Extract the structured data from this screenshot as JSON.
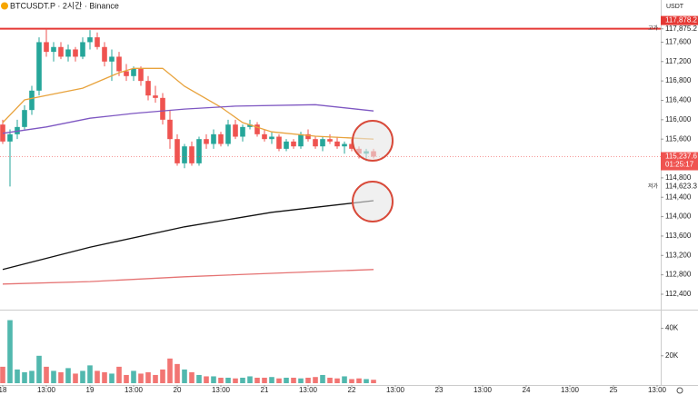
{
  "chart_data": {
    "type": "candlestick",
    "title": "BTCUSDT.P · 2시간 · Binance",
    "y_axis_label": "USDT",
    "x": [
      0,
      2,
      4,
      6,
      8,
      10,
      12,
      14,
      16,
      18,
      20,
      22,
      24,
      26,
      28,
      30,
      32,
      34,
      36,
      38,
      40,
      42,
      44,
      46,
      48,
      50,
      52,
      54,
      56,
      58,
      60,
      62,
      64,
      66,
      68,
      70,
      72,
      74,
      76,
      78,
      80,
      82,
      84,
      86,
      88,
      90,
      92,
      94,
      96,
      98,
      100,
      102
    ],
    "open": [
      115900,
      115550,
      115700,
      115850,
      116200,
      116600,
      117600,
      117400,
      117500,
      117300,
      117450,
      117300,
      117600,
      117700,
      117500,
      117200,
      117300,
      117000,
      116900,
      117050,
      116800,
      116500,
      116450,
      116000,
      115600,
      115100,
      115450,
      115100,
      115600,
      115500,
      115700,
      115500,
      115900,
      115650,
      115850,
      115900,
      115700,
      115600,
      115650,
      115400,
      115550,
      115450,
      115700,
      115600,
      115450,
      115600,
      115550,
      115450,
      115500,
      115400,
      115300,
      115350
    ],
    "high": [
      116000,
      115800,
      116000,
      116300,
      116700,
      117700,
      117878.2,
      117600,
      117600,
      117550,
      117500,
      117700,
      117850,
      117800,
      117600,
      117450,
      117400,
      117150,
      117100,
      117100,
      116900,
      116700,
      116550,
      116200,
      115700,
      115500,
      115550,
      115650,
      115700,
      115800,
      115750,
      116000,
      116000,
      115900,
      116000,
      115950,
      115800,
      115750,
      115700,
      115600,
      115600,
      115750,
      115800,
      115650,
      115650,
      115700,
      115650,
      115550,
      115600,
      115450,
      115400,
      115400
    ],
    "low": [
      115500,
      114623.3,
      115600,
      115800,
      116100,
      116500,
      117300,
      117200,
      117250,
      117200,
      117200,
      117250,
      117450,
      117450,
      117100,
      116800,
      116900,
      116800,
      116800,
      116700,
      116400,
      116350,
      115900,
      115400,
      115050,
      115000,
      115050,
      115050,
      115400,
      115400,
      115450,
      115450,
      115600,
      115550,
      115800,
      115650,
      115550,
      115500,
      115350,
      115350,
      115400,
      115400,
      115550,
      115400,
      115350,
      115500,
      115400,
      115300,
      115350,
      115200,
      115150,
      115200
    ],
    "close": [
      115550,
      115700,
      115850,
      116200,
      116600,
      117600,
      117400,
      117500,
      117300,
      117450,
      117300,
      117600,
      117700,
      117500,
      117200,
      117300,
      117000,
      116900,
      117050,
      116800,
      116500,
      116450,
      116000,
      115600,
      115100,
      115450,
      115100,
      115600,
      115500,
      115700,
      115500,
      115900,
      115650,
      115850,
      115900,
      115700,
      115600,
      115650,
      115400,
      115550,
      115450,
      115700,
      115600,
      115450,
      115600,
      115550,
      115450,
      115500,
      115400,
      115300,
      115350,
      115237.6
    ],
    "volume": [
      12000,
      46000,
      10000,
      8000,
      9000,
      20000,
      12000,
      9000,
      8000,
      11000,
      7000,
      9000,
      13000,
      9000,
      8000,
      7000,
      12000,
      6000,
      9000,
      7000,
      8000,
      6000,
      10000,
      18000,
      14000,
      10000,
      8000,
      6000,
      5000,
      5000,
      4000,
      4000,
      3500,
      4000,
      5000,
      4000,
      4000,
      4500,
      3500,
      4000,
      4000,
      3500,
      4000,
      4500,
      6000,
      4000,
      3500,
      5000,
      3000,
      3500,
      3000,
      2500
    ],
    "up_color": "#26a69a",
    "down_color": "#ef5350",
    "lines": [
      {
        "color": "#e8a33d",
        "x": [
          0,
          6,
          12,
          22,
          32,
          36,
          44,
          50,
          60,
          66,
          74,
          86,
          102
        ],
        "values": [
          115940,
          116410,
          116500,
          116650,
          116970,
          117060,
          117060,
          116690,
          116260,
          115940,
          115750,
          115660,
          115600
        ]
      },
      {
        "color": "#7e57c2",
        "x": [
          0,
          12,
          24,
          36,
          50,
          64,
          86,
          102
        ],
        "values": [
          115720,
          115850,
          116030,
          116130,
          116220,
          116280,
          116310,
          116180
        ]
      },
      {
        "color": "#111111",
        "x": [
          0,
          24,
          50,
          74,
          102
        ],
        "values": [
          112910,
          113370,
          113790,
          114090,
          114330
        ]
      },
      {
        "color": "#e57373",
        "x": [
          0,
          24,
          50,
          74,
          102
        ],
        "values": [
          112610,
          112660,
          112760,
          112830,
          112910
        ]
      }
    ],
    "high_line": {
      "value": 117878.2,
      "label": "117,878.2",
      "color": "#e53935",
      "marker": "고가"
    },
    "low_marker": {
      "value": 114623.3,
      "label": "114,623.3",
      "marker": "저가"
    },
    "last_price": {
      "value": 115237.6,
      "label": "115,237.6",
      "countdown": "01:25:17"
    },
    "xlim": [
      -0.75,
      181
    ],
    "xticks": [
      {
        "value": 0,
        "label": "18"
      },
      {
        "value": 12,
        "label": "13:00"
      },
      {
        "value": 24,
        "label": "19"
      },
      {
        "value": 36,
        "label": "13:00"
      },
      {
        "value": 48,
        "label": "20"
      },
      {
        "value": 60,
        "label": "13:00"
      },
      {
        "value": 72,
        "label": "21"
      },
      {
        "value": 84,
        "label": "13:00"
      },
      {
        "value": 96,
        "label": "22"
      },
      {
        "value": 108,
        "label": "13:00"
      },
      {
        "value": 120,
        "label": "23"
      },
      {
        "value": 132,
        "label": "13:00"
      },
      {
        "value": 144,
        "label": "24"
      },
      {
        "value": 156,
        "label": "13:00"
      },
      {
        "value": 168,
        "label": "25"
      },
      {
        "value": 180,
        "label": "13:00"
      }
    ],
    "ylim": [
      112100,
      118470
    ],
    "yticks": [
      {
        "value": 117875.2,
        "label": "117,875.2"
      },
      {
        "value": 117600,
        "label": "117,600"
      },
      {
        "value": 117200,
        "label": "117,200"
      },
      {
        "value": 116800,
        "label": "116,800"
      },
      {
        "value": 116400,
        "label": "116,400"
      },
      {
        "value": 116000,
        "label": "116,000"
      },
      {
        "value": 115600,
        "label": "115,600"
      },
      {
        "value": 114800,
        "label": "114,800"
      },
      {
        "value": 114400,
        "label": "114,400"
      },
      {
        "value": 114000,
        "label": "114,000"
      },
      {
        "value": 113600,
        "label": "113,600"
      },
      {
        "value": 113200,
        "label": "113,200"
      },
      {
        "value": 112800,
        "label": "112,800"
      },
      {
        "value": 112400,
        "label": "112,400"
      }
    ],
    "volume_ylim": [
      0,
      53000
    ],
    "volume_yticks": [
      {
        "value": 40000,
        "label": "40K"
      },
      {
        "value": 20000,
        "label": "20K"
      }
    ]
  }
}
